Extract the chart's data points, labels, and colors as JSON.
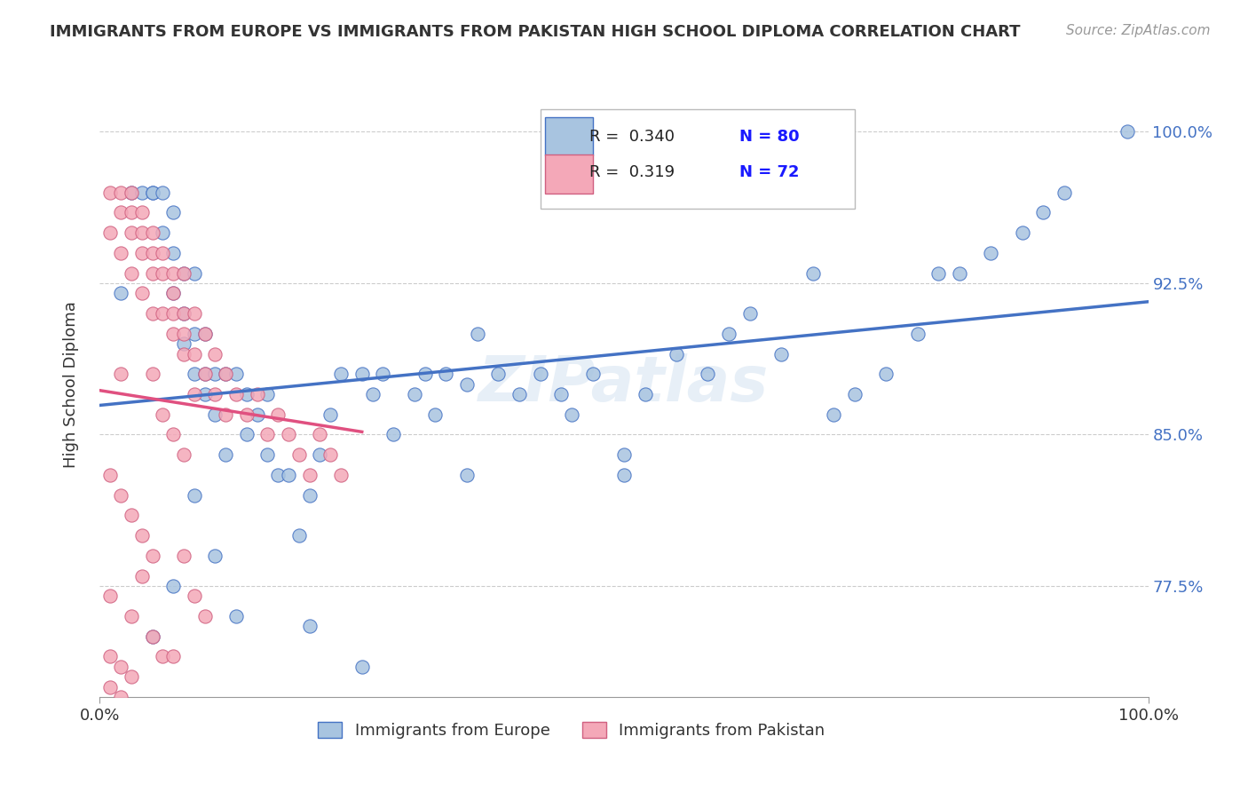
{
  "title": "IMMIGRANTS FROM EUROPE VS IMMIGRANTS FROM PAKISTAN HIGH SCHOOL DIPLOMA CORRELATION CHART",
  "source": "Source: ZipAtlas.com",
  "xlabel": "",
  "ylabel": "High School Diploma",
  "xlim": [
    0.0,
    1.0
  ],
  "ylim": [
    0.72,
    1.03
  ],
  "xtick_labels": [
    "0.0%",
    "100.0%"
  ],
  "ytick_labels": [
    "77.5%",
    "85.0%",
    "92.5%",
    "100.0%"
  ],
  "ytick_vals": [
    0.775,
    0.85,
    0.925,
    1.0
  ],
  "watermark": "ZIPatlas",
  "legend_r1": "R =  0.340",
  "legend_n1": "N = 80",
  "legend_r2": "R =  0.319",
  "legend_n2": "N = 72",
  "color_europe": "#a8c4e0",
  "color_pakistan": "#f4a8b8",
  "color_europe_line": "#4472c4",
  "color_pakistan_line": "#e05080",
  "color_pakistan_edge": "#d06080",
  "color_legend_text": "#1a1aff",
  "background_color": "#ffffff",
  "europe_x": [
    0.02,
    0.03,
    0.04,
    0.05,
    0.05,
    0.06,
    0.06,
    0.07,
    0.07,
    0.07,
    0.08,
    0.08,
    0.08,
    0.09,
    0.09,
    0.09,
    0.1,
    0.1,
    0.1,
    0.11,
    0.11,
    0.12,
    0.12,
    0.13,
    0.14,
    0.14,
    0.15,
    0.16,
    0.16,
    0.17,
    0.18,
    0.19,
    0.2,
    0.21,
    0.22,
    0.23,
    0.25,
    0.26,
    0.27,
    0.28,
    0.3,
    0.31,
    0.32,
    0.33,
    0.35,
    0.36,
    0.38,
    0.4,
    0.42,
    0.44,
    0.45,
    0.47,
    0.5,
    0.52,
    0.55,
    0.58,
    0.6,
    0.62,
    0.65,
    0.68,
    0.7,
    0.72,
    0.75,
    0.78,
    0.8,
    0.82,
    0.85,
    0.88,
    0.9,
    0.92,
    0.05,
    0.07,
    0.09,
    0.11,
    0.13,
    0.35,
    0.5,
    0.2,
    0.25,
    0.98
  ],
  "europe_y": [
    0.92,
    0.97,
    0.97,
    0.97,
    0.97,
    0.97,
    0.95,
    0.96,
    0.94,
    0.92,
    0.93,
    0.91,
    0.895,
    0.9,
    0.93,
    0.88,
    0.87,
    0.9,
    0.88,
    0.88,
    0.86,
    0.88,
    0.84,
    0.88,
    0.85,
    0.87,
    0.86,
    0.87,
    0.84,
    0.83,
    0.83,
    0.8,
    0.82,
    0.84,
    0.86,
    0.88,
    0.88,
    0.87,
    0.88,
    0.85,
    0.87,
    0.88,
    0.86,
    0.88,
    0.875,
    0.9,
    0.88,
    0.87,
    0.88,
    0.87,
    0.86,
    0.88,
    0.83,
    0.87,
    0.89,
    0.88,
    0.9,
    0.91,
    0.89,
    0.93,
    0.86,
    0.87,
    0.88,
    0.9,
    0.93,
    0.93,
    0.94,
    0.95,
    0.96,
    0.97,
    0.75,
    0.775,
    0.82,
    0.79,
    0.76,
    0.83,
    0.84,
    0.755,
    0.735,
    1.0
  ],
  "pakistan_x": [
    0.01,
    0.01,
    0.02,
    0.02,
    0.02,
    0.03,
    0.03,
    0.03,
    0.03,
    0.04,
    0.04,
    0.04,
    0.04,
    0.05,
    0.05,
    0.05,
    0.05,
    0.06,
    0.06,
    0.06,
    0.07,
    0.07,
    0.07,
    0.07,
    0.08,
    0.08,
    0.08,
    0.08,
    0.09,
    0.09,
    0.1,
    0.1,
    0.11,
    0.11,
    0.12,
    0.12,
    0.13,
    0.14,
    0.15,
    0.16,
    0.17,
    0.18,
    0.19,
    0.2,
    0.21,
    0.22,
    0.23,
    0.02,
    0.05,
    0.06,
    0.07,
    0.08,
    0.09,
    0.01,
    0.02,
    0.03,
    0.04,
    0.05,
    0.01,
    0.03,
    0.05,
    0.06,
    0.07,
    0.09,
    0.1,
    0.08,
    0.04,
    0.02,
    0.03,
    0.01,
    0.02,
    0.01
  ],
  "pakistan_y": [
    0.97,
    0.95,
    0.97,
    0.96,
    0.94,
    0.97,
    0.96,
    0.95,
    0.93,
    0.96,
    0.95,
    0.94,
    0.92,
    0.95,
    0.94,
    0.93,
    0.91,
    0.94,
    0.93,
    0.91,
    0.93,
    0.92,
    0.91,
    0.9,
    0.93,
    0.91,
    0.9,
    0.89,
    0.91,
    0.89,
    0.9,
    0.88,
    0.89,
    0.87,
    0.88,
    0.86,
    0.87,
    0.86,
    0.87,
    0.85,
    0.86,
    0.85,
    0.84,
    0.83,
    0.85,
    0.84,
    0.83,
    0.88,
    0.88,
    0.86,
    0.85,
    0.84,
    0.87,
    0.83,
    0.82,
    0.81,
    0.8,
    0.79,
    0.77,
    0.76,
    0.75,
    0.74,
    0.74,
    0.77,
    0.76,
    0.79,
    0.78,
    0.72,
    0.73,
    0.74,
    0.735,
    0.725
  ]
}
